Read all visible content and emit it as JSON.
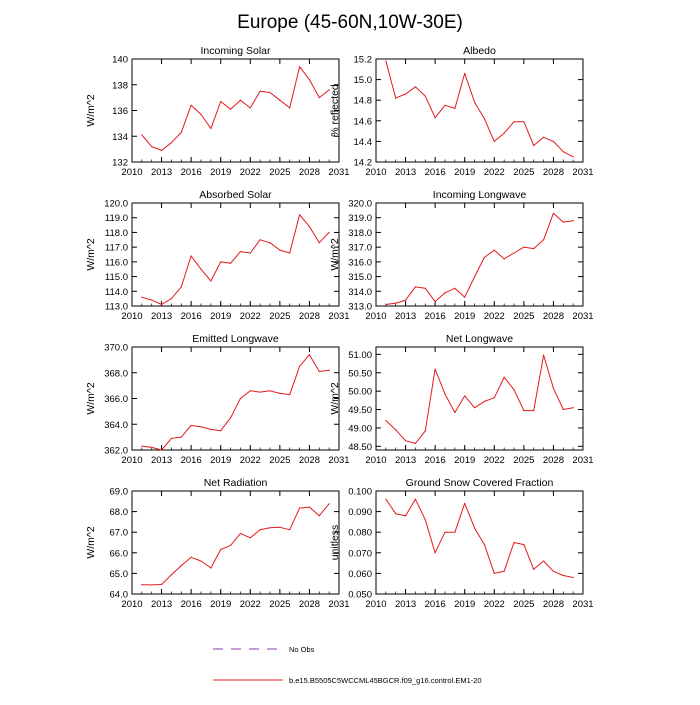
{
  "figure": {
    "title": "Europe (45-60N,10W-30E)",
    "legend": [
      {
        "label": "No Obs",
        "style": "dashed",
        "color": "#8a3fa8"
      },
      {
        "label": "b.e15.B5505C5WCCML45BGCR.f09_g16.control.EM1-20",
        "style": "solid",
        "color": "#e41a1c"
      }
    ],
    "line_color": "#e41a1c"
  },
  "chart_data": [
    {
      "type": "line",
      "title": "Incoming Solar",
      "ylabel": "W/m^2",
      "xlim": [
        2010,
        2031
      ],
      "xticks": [
        2010,
        2013,
        2016,
        2019,
        2022,
        2025,
        2028,
        2031
      ],
      "ylim": [
        132,
        140
      ],
      "yticks": [
        132,
        134,
        136,
        138,
        140
      ],
      "decimals": 0,
      "x": [
        2011,
        2012,
        2013,
        2014,
        2015,
        2016,
        2017,
        2018,
        2019,
        2020,
        2021,
        2022,
        2023,
        2024,
        2025,
        2026,
        2027,
        2028,
        2029,
        2030
      ],
      "series": [
        {
          "name": "b.e15.B5505C5WCCML45BGCR.f09_g16.control.EM1-20",
          "values": [
            134.1,
            133.2,
            132.9,
            133.5,
            134.3,
            136.4,
            135.7,
            134.6,
            136.7,
            136.1,
            136.8,
            136.2,
            137.5,
            137.4,
            136.8,
            136.2,
            139.4,
            138.4,
            137.0,
            137.6
          ]
        }
      ]
    },
    {
      "type": "line",
      "title": "Albedo",
      "ylabel": "% reflected",
      "xlim": [
        2010,
        2031
      ],
      "xticks": [
        2010,
        2013,
        2016,
        2019,
        2022,
        2025,
        2028,
        2031
      ],
      "ylim": [
        14.2,
        15.2
      ],
      "yticks": [
        14.2,
        14.4,
        14.6,
        14.8,
        15.0,
        15.2
      ],
      "decimals": 1,
      "x": [
        2011,
        2012,
        2013,
        2014,
        2015,
        2016,
        2017,
        2018,
        2019,
        2020,
        2021,
        2022,
        2023,
        2024,
        2025,
        2026,
        2027,
        2028,
        2029,
        2030
      ],
      "series": [
        {
          "name": "b.e15.B5505C5WCCML45BGCR.f09_g16.control.EM1-20",
          "values": [
            15.18,
            14.82,
            14.86,
            14.93,
            14.84,
            14.63,
            14.75,
            14.72,
            15.06,
            14.78,
            14.62,
            14.4,
            14.48,
            14.59,
            14.59,
            14.36,
            14.44,
            14.4,
            14.3,
            14.25
          ]
        }
      ]
    },
    {
      "type": "line",
      "title": "Absorbed Solar",
      "ylabel": "W/m^2",
      "xlim": [
        2010,
        2031
      ],
      "xticks": [
        2010,
        2013,
        2016,
        2019,
        2022,
        2025,
        2028,
        2031
      ],
      "ylim": [
        113,
        120
      ],
      "yticks": [
        113.0,
        114.0,
        115.0,
        116.0,
        117.0,
        118.0,
        119.0,
        120.0
      ],
      "decimals": 1,
      "x": [
        2011,
        2012,
        2013,
        2014,
        2015,
        2016,
        2017,
        2018,
        2019,
        2020,
        2021,
        2022,
        2023,
        2024,
        2025,
        2026,
        2027,
        2028,
        2029,
        2030
      ],
      "series": [
        {
          "name": "b.e15.B5505C5WCCML45BGCR.f09_g16.control.EM1-20",
          "values": [
            113.6,
            113.4,
            113.1,
            113.5,
            114.3,
            116.4,
            115.5,
            114.7,
            116.0,
            115.9,
            116.7,
            116.6,
            117.5,
            117.3,
            116.8,
            116.6,
            119.2,
            118.4,
            117.3,
            118.0
          ]
        }
      ]
    },
    {
      "type": "line",
      "title": "Incoming Longwave",
      "ylabel": "W/m^2",
      "xlim": [
        2010,
        2031
      ],
      "xticks": [
        2010,
        2013,
        2016,
        2019,
        2022,
        2025,
        2028,
        2031
      ],
      "ylim": [
        313,
        320
      ],
      "yticks": [
        313.0,
        314.0,
        315.0,
        316.0,
        317.0,
        318.0,
        319.0,
        320.0
      ],
      "decimals": 1,
      "x": [
        2011,
        2012,
        2013,
        2014,
        2015,
        2016,
        2017,
        2018,
        2019,
        2020,
        2021,
        2022,
        2023,
        2024,
        2025,
        2026,
        2027,
        2028,
        2029,
        2030
      ],
      "series": [
        {
          "name": "b.e15.B5505C5WCCML45BGCR.f09_g16.control.EM1-20",
          "values": [
            313.1,
            313.2,
            313.4,
            314.3,
            314.2,
            313.3,
            313.9,
            314.2,
            313.6,
            315.0,
            316.3,
            316.8,
            316.2,
            316.6,
            317.0,
            316.9,
            317.5,
            319.3,
            318.7,
            318.8
          ]
        }
      ]
    },
    {
      "type": "line",
      "title": "Emitted Longwave",
      "ylabel": "W/m^2",
      "xlim": [
        2010,
        2031
      ],
      "xticks": [
        2010,
        2013,
        2016,
        2019,
        2022,
        2025,
        2028,
        2031
      ],
      "ylim": [
        362,
        370
      ],
      "yticks": [
        362.0,
        364.0,
        366.0,
        368.0,
        370.0
      ],
      "decimals": 1,
      "x": [
        2011,
        2012,
        2013,
        2014,
        2015,
        2016,
        2017,
        2018,
        2019,
        2020,
        2021,
        2022,
        2023,
        2024,
        2025,
        2026,
        2027,
        2028,
        2029,
        2030
      ],
      "series": [
        {
          "name": "b.e15.B5505C5WCCML45BGCR.f09_g16.control.EM1-20",
          "values": [
            362.3,
            362.2,
            362.0,
            362.9,
            363.0,
            363.9,
            363.8,
            363.6,
            363.5,
            364.5,
            366.0,
            366.6,
            366.5,
            366.6,
            366.4,
            366.3,
            368.5,
            369.4,
            368.1,
            368.2
          ]
        }
      ]
    },
    {
      "type": "line",
      "title": "Net Longwave",
      "ylabel": "W/m^2",
      "xlim": [
        2010,
        2031
      ],
      "xticks": [
        2010,
        2013,
        2016,
        2019,
        2022,
        2025,
        2028,
        2031
      ],
      "ylim": [
        48.4,
        51.2
      ],
      "yticks": [
        48.5,
        49.0,
        49.5,
        50.0,
        50.5,
        51.0
      ],
      "decimals": 2,
      "x": [
        2011,
        2012,
        2013,
        2014,
        2015,
        2016,
        2017,
        2018,
        2019,
        2020,
        2021,
        2022,
        2023,
        2024,
        2025,
        2026,
        2027,
        2028,
        2029,
        2030
      ],
      "series": [
        {
          "name": "b.e15.B5505C5WCCML45BGCR.f09_g16.control.EM1-20",
          "values": [
            49.2,
            48.95,
            48.65,
            48.58,
            48.92,
            50.6,
            49.92,
            49.42,
            49.87,
            49.55,
            49.72,
            49.82,
            50.38,
            50.04,
            49.47,
            49.47,
            50.98,
            50.08,
            49.5,
            49.55
          ]
        }
      ]
    },
    {
      "type": "line",
      "title": "Net Radiation",
      "ylabel": "W/m^2",
      "xlim": [
        2010,
        2031
      ],
      "xticks": [
        2010,
        2013,
        2016,
        2019,
        2022,
        2025,
        2028,
        2031
      ],
      "ylim": [
        64,
        69
      ],
      "yticks": [
        64.0,
        65.0,
        66.0,
        67.0,
        68.0,
        69.0
      ],
      "decimals": 1,
      "x": [
        2011,
        2012,
        2013,
        2014,
        2015,
        2016,
        2017,
        2018,
        2019,
        2020,
        2021,
        2022,
        2023,
        2024,
        2025,
        2026,
        2027,
        2028,
        2029,
        2030
      ],
      "series": [
        {
          "name": "b.e15.B5505C5WCCML45BGCR.f09_g16.control.EM1-20",
          "values": [
            64.45,
            64.44,
            64.46,
            64.93,
            65.38,
            65.78,
            65.6,
            65.26,
            66.16,
            66.36,
            66.94,
            66.73,
            67.12,
            67.22,
            67.24,
            67.12,
            68.17,
            68.22,
            67.8,
            68.38
          ]
        }
      ]
    },
    {
      "type": "line",
      "title": "Ground Snow Covered Fraction",
      "ylabel": "unitless",
      "xlim": [
        2010,
        2031
      ],
      "xticks": [
        2010,
        2013,
        2016,
        2019,
        2022,
        2025,
        2028,
        2031
      ],
      "ylim": [
        0.05,
        0.1
      ],
      "yticks": [
        0.05,
        0.06,
        0.07,
        0.08,
        0.09,
        0.1
      ],
      "decimals": 3,
      "x": [
        2011,
        2012,
        2013,
        2014,
        2015,
        2016,
        2017,
        2018,
        2019,
        2020,
        2021,
        2022,
        2023,
        2024,
        2025,
        2026,
        2027,
        2028,
        2029,
        2030
      ],
      "series": [
        {
          "name": "b.e15.B5505C5WCCML45BGCR.f09_g16.control.EM1-20",
          "values": [
            0.096,
            0.089,
            0.088,
            0.096,
            0.086,
            0.07,
            0.08,
            0.08,
            0.094,
            0.082,
            0.074,
            0.06,
            0.061,
            0.075,
            0.074,
            0.062,
            0.066,
            0.061,
            0.059,
            0.058
          ]
        }
      ]
    }
  ]
}
